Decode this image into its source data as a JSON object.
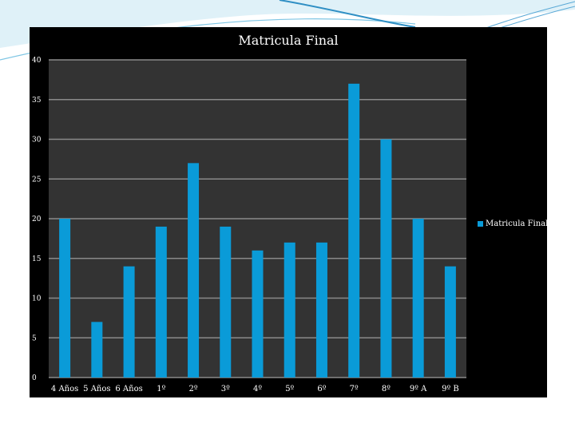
{
  "chart_data": {
    "type": "bar",
    "title": "Matricula Final",
    "categories": [
      "4 Años",
      "5 Años",
      "6 Años",
      "1º",
      "2º",
      "3º",
      "4º",
      "5º",
      "6º",
      "7º",
      "8º",
      "9º A",
      "9º B"
    ],
    "series": [
      {
        "name": "Matricula Final",
        "values": [
          20,
          7,
          14,
          19,
          27,
          19,
          16,
          17,
          17,
          37,
          30,
          20,
          14
        ],
        "color": "#0a9bd8"
      }
    ],
    "ylim": [
      0,
      40
    ],
    "yticks": [
      0,
      5,
      10,
      15,
      20,
      25,
      30,
      35,
      40
    ],
    "grid": true,
    "legend_position": "right",
    "plot_background": "#333333",
    "chart_background": "#000000",
    "gridline_color": "#8a8a8a"
  }
}
